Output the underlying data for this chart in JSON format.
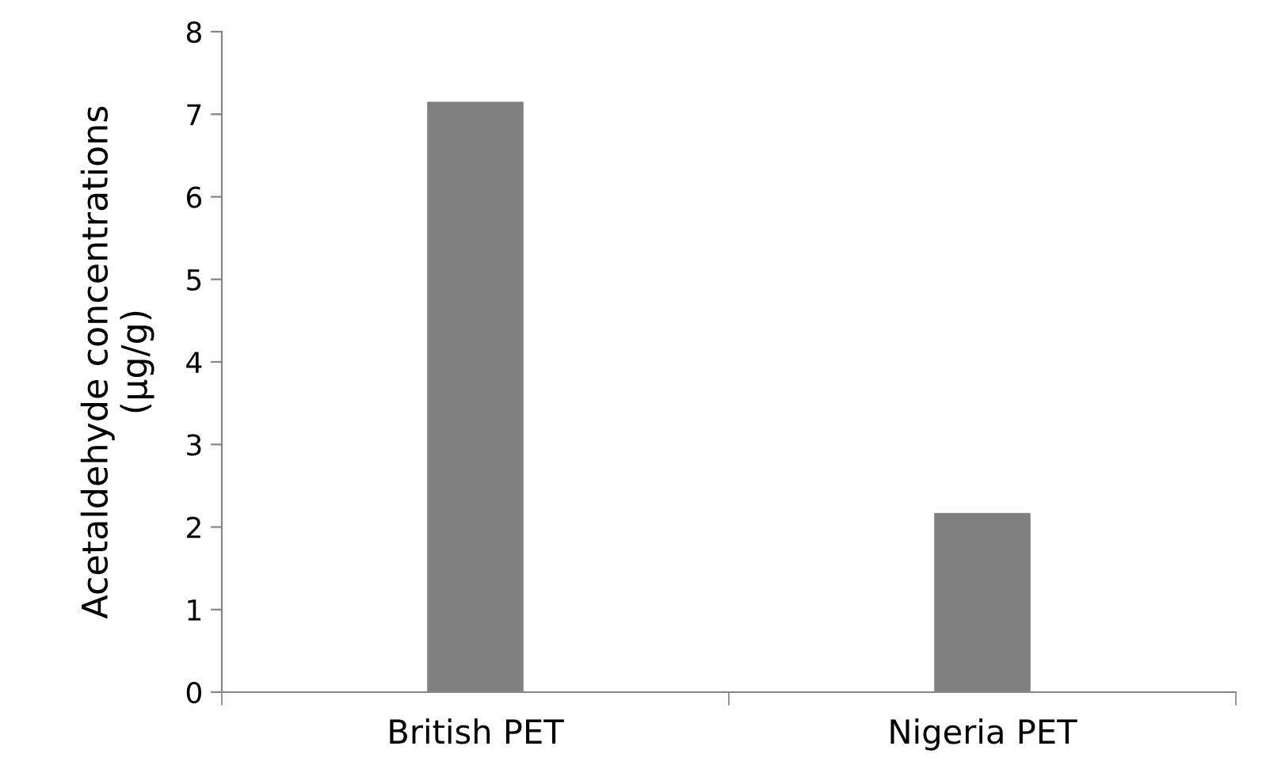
{
  "chart_data": {
    "type": "bar",
    "ylabel": "Acetaldehyde concentrations\n(µg/g)",
    "categories": [
      "British PET",
      "Nigeria PET"
    ],
    "values": [
      7.15,
      2.17
    ],
    "color": "#808080",
    "ylim": [
      0,
      8
    ],
    "yticks": [
      0,
      1,
      2,
      3,
      4,
      5,
      6,
      7,
      8
    ],
    "grid": false,
    "legend": false
  }
}
